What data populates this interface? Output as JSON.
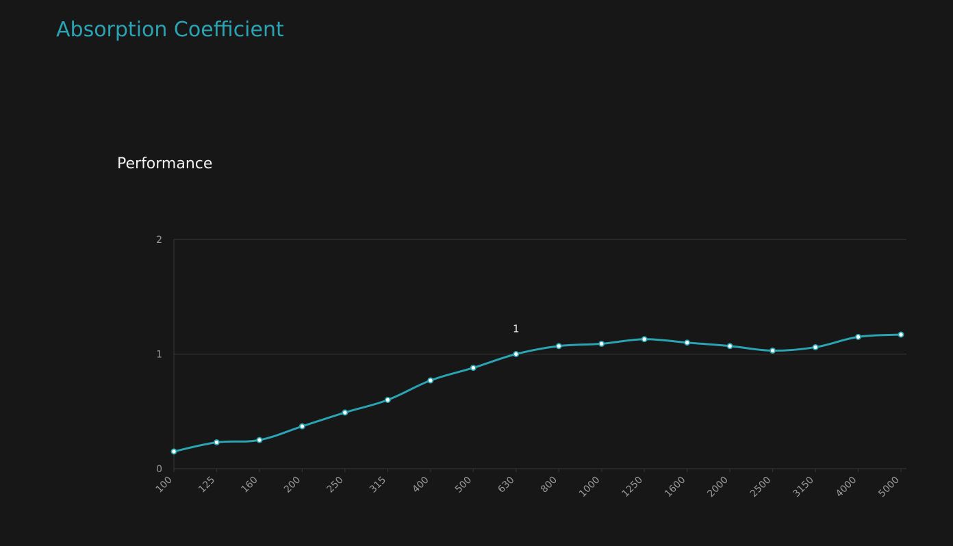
{
  "page": {
    "title": "Absorption Coefficient"
  },
  "chart_data": {
    "type": "line",
    "title": "Performance",
    "xlabel": "",
    "ylabel": "",
    "categories": [
      "100",
      "125",
      "160",
      "200",
      "250",
      "315",
      "400",
      "500",
      "630",
      "800",
      "1000",
      "1250",
      "1600",
      "2000",
      "2500",
      "3150",
      "4000",
      "5000"
    ],
    "series": [
      {
        "values": [
          0.15,
          0.23,
          0.25,
          0.37,
          0.49,
          0.6,
          0.77,
          0.88,
          1.0,
          1.07,
          1.09,
          1.13,
          1.1,
          1.07,
          1.03,
          1.06,
          1.15,
          1.17
        ],
        "color": "#2aa3b3"
      }
    ],
    "ylim": [
      0,
      2
    ],
    "yticks": [
      "0",
      "1",
      "2"
    ],
    "grid": true,
    "annotations": [
      {
        "category": "630",
        "text": "1"
      }
    ]
  }
}
